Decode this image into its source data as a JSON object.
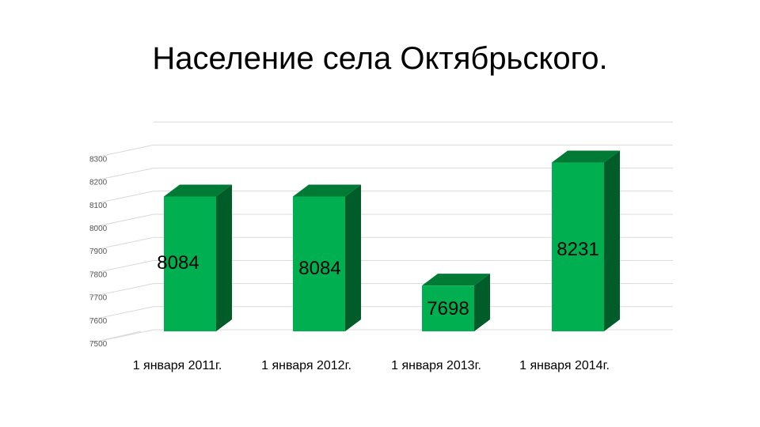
{
  "title": "Население села Октябрьского.",
  "chart_data": {
    "type": "bar",
    "title": "Население села Октябрьского.",
    "categories": [
      "1 января 2011г.",
      "1 января 2012г.",
      "1 января 2013г.",
      "1 января 2014г."
    ],
    "values": [
      8084,
      8084,
      7698,
      8231
    ],
    "data_labels": [
      "8084",
      "8084",
      "7698",
      "8231"
    ],
    "ylim": [
      7500,
      8900
    ],
    "yticks": [
      "7500",
      "7600",
      "7700",
      "7800",
      "7900",
      "8000",
      "8100",
      "8200",
      "8300"
    ],
    "grid": true,
    "legend": "none",
    "style": "3d-column",
    "colors": {
      "front": "#00b050",
      "side": "#005c28",
      "top": "#007a34"
    }
  }
}
